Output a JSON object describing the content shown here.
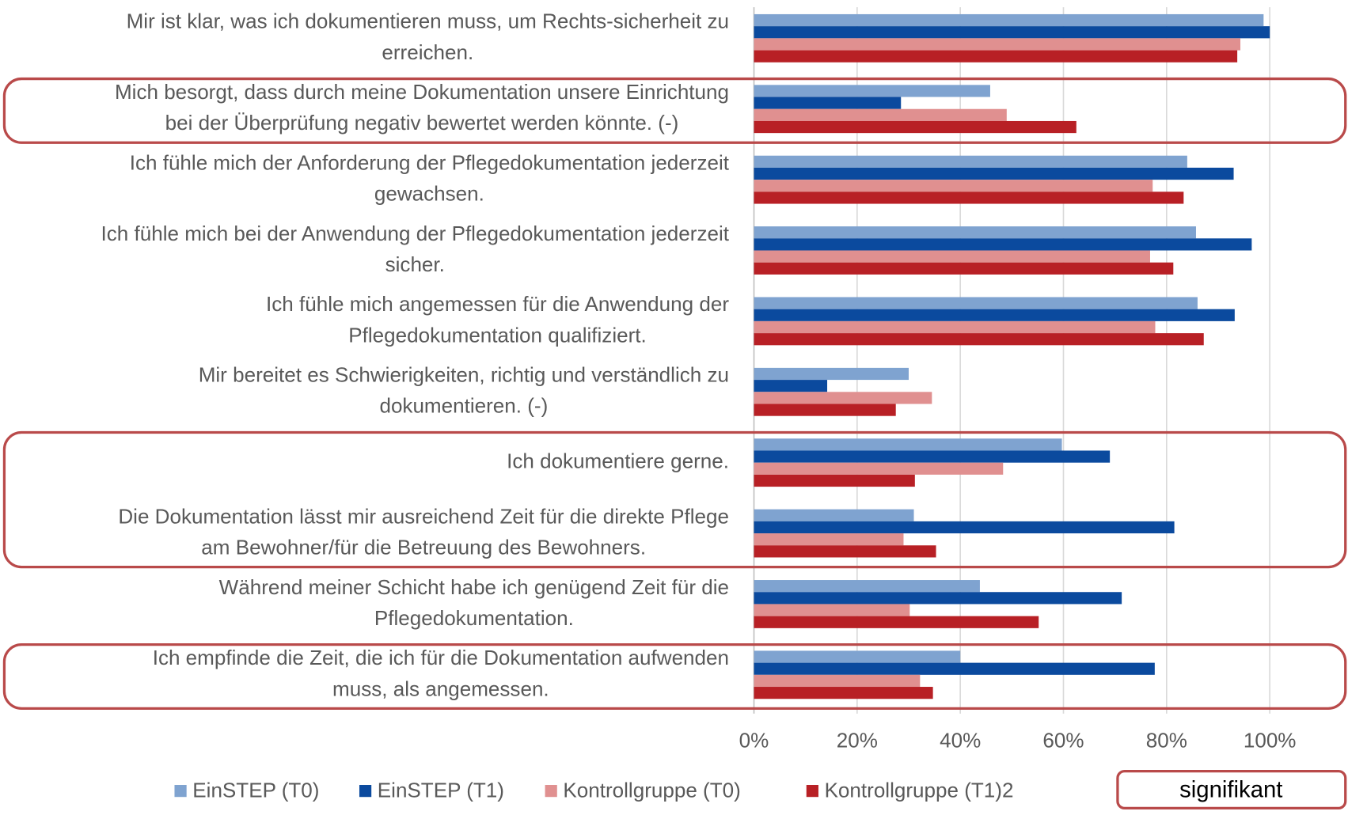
{
  "chart_data": {
    "type": "barh",
    "categories": [
      [
        "Mir ist klar, was ich dokumentieren muss, um Rechts-sicherheit zu",
        "erreichen."
      ],
      [
        "Mich besorgt, dass durch meine Dokumentation unsere Einrichtung",
        "bei der Überprüfung negativ bewertet werden könnte. (-)"
      ],
      [
        "Ich fühle mich der Anforderung der Pflegedokumentation jederzeit",
        "gewachsen."
      ],
      [
        "Ich fühle mich bei der Anwendung der Pflegedokumentation jederzeit",
        "sicher."
      ],
      [
        "Ich fühle mich angemessen für die Anwendung der",
        "Pflegedokumentation qualifiziert."
      ],
      [
        "Mir bereitet es Schwierigkeiten, richtig und verständlich zu",
        "dokumentieren. (-)"
      ],
      [
        "Ich dokumentiere gerne."
      ],
      [
        "Die Dokumentation lässt mir ausreichend Zeit für die direkte Pflege",
        "am Bewohner/für die Betreuung des Bewohners."
      ],
      [
        "Während meiner Schicht habe ich genügend Zeit für die",
        "Pflegedokumentation."
      ],
      [
        "Ich empfinde die Zeit, die ich für die Dokumentation aufwenden",
        "muss, als angemessen."
      ]
    ],
    "series": [
      {
        "name": "EinSTEP (T0)",
        "color": "#7fa3d0",
        "values": [
          98.8,
          45.8,
          84,
          85.7,
          86,
          30,
          59.7,
          31,
          43.8,
          40
        ]
      },
      {
        "name": "EinSTEP (T1)",
        "color": "#0b4a9e",
        "values": [
          100,
          28.5,
          93,
          96.5,
          93.2,
          14.2,
          69,
          81.5,
          71.3,
          77.7
        ]
      },
      {
        "name": "Kontrollgruppe (T0)",
        "color": "#e09090",
        "values": [
          94.3,
          49,
          77.3,
          76.8,
          77.8,
          34.5,
          48.3,
          29,
          30.2,
          32.2
        ]
      },
      {
        "name": "Kontrollgruppe (T1)2",
        "color": "#b82025",
        "values": [
          93.7,
          62.5,
          83.3,
          81.3,
          87.2,
          27.5,
          31.2,
          35.3,
          55.2,
          34.7
        ]
      }
    ],
    "xlim": [
      0,
      110
    ],
    "xticks": [
      {
        "value": 0,
        "label": "0%"
      },
      {
        "value": 20,
        "label": "20%"
      },
      {
        "value": 40,
        "label": "40%"
      },
      {
        "value": 60,
        "label": "60%"
      },
      {
        "value": 80,
        "label": "80%"
      },
      {
        "value": 100,
        "label": "100%"
      }
    ],
    "grid": true,
    "legend": "bottom",
    "significant": [
      1,
      6,
      7,
      9
    ],
    "significant_label": "signifikant",
    "highlight_color": "#b94a4a"
  }
}
